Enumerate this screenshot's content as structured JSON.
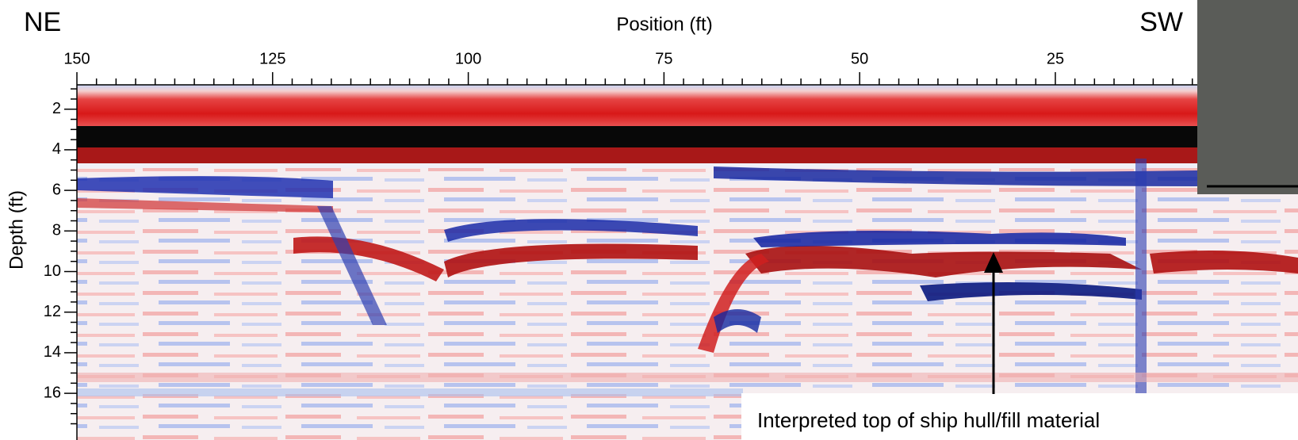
{
  "chart_data": {
    "type": "radargram",
    "left_label": "NE",
    "right_label": "SW",
    "xlabel": "Position (ft)",
    "ylabel": "Depth (ft)",
    "xlim": [
      150,
      -6
    ],
    "xticks": [
      150,
      125,
      100,
      75,
      50,
      25
    ],
    "ylim": [
      0.8,
      18.3
    ],
    "yticks": [
      2,
      4,
      6,
      8,
      10,
      12,
      14,
      16
    ],
    "annotation": "Interpreted top of ship hull/fill material"
  }
}
